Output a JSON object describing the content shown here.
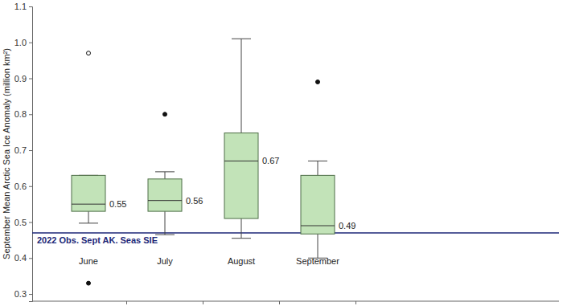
{
  "chart_data": {
    "type": "box",
    "y_label": "September Mean Arctic Sea Ice Anomaly (million km²)",
    "categories": [
      "June",
      "July",
      "August",
      "September"
    ],
    "boxes": [
      {
        "whisker_low": 0.497,
        "q1": 0.53,
        "median": 0.55,
        "q3": 0.63,
        "whisker_high": 0.63,
        "outliers": [
          {
            "value": 0.97,
            "marker": "circle-open"
          },
          {
            "value": 0.33,
            "marker": "circle"
          }
        ]
      },
      {
        "whisker_low": 0.465,
        "q1": 0.53,
        "median": 0.56,
        "q3": 0.62,
        "whisker_high": 0.64,
        "outliers": [
          {
            "value": 0.8,
            "marker": "circle"
          }
        ]
      },
      {
        "whisker_low": 0.455,
        "q1": 0.51,
        "median": 0.67,
        "q3": 0.748,
        "whisker_high": 1.01,
        "outliers": []
      },
      {
        "whisker_low": 0.4,
        "q1": 0.467,
        "median": 0.49,
        "q3": 0.63,
        "whisker_high": 0.67,
        "outliers": [
          {
            "value": 0.89,
            "marker": "circle"
          }
        ]
      }
    ],
    "color": "#c2e3b8",
    "data_labels": true,
    "ylim": [
      0.28,
      1.1
    ],
    "yticks": [
      0.3,
      0.4,
      0.5,
      0.6,
      0.7,
      0.8,
      0.9,
      {
        "value": 1,
        "label": "1.0"
      },
      1.1
    ],
    "reference_lines": [
      {
        "value": 0.47,
        "label": "2022 Obs. Sept AK. Seas SIE",
        "color": "#1c2777"
      }
    ]
  }
}
